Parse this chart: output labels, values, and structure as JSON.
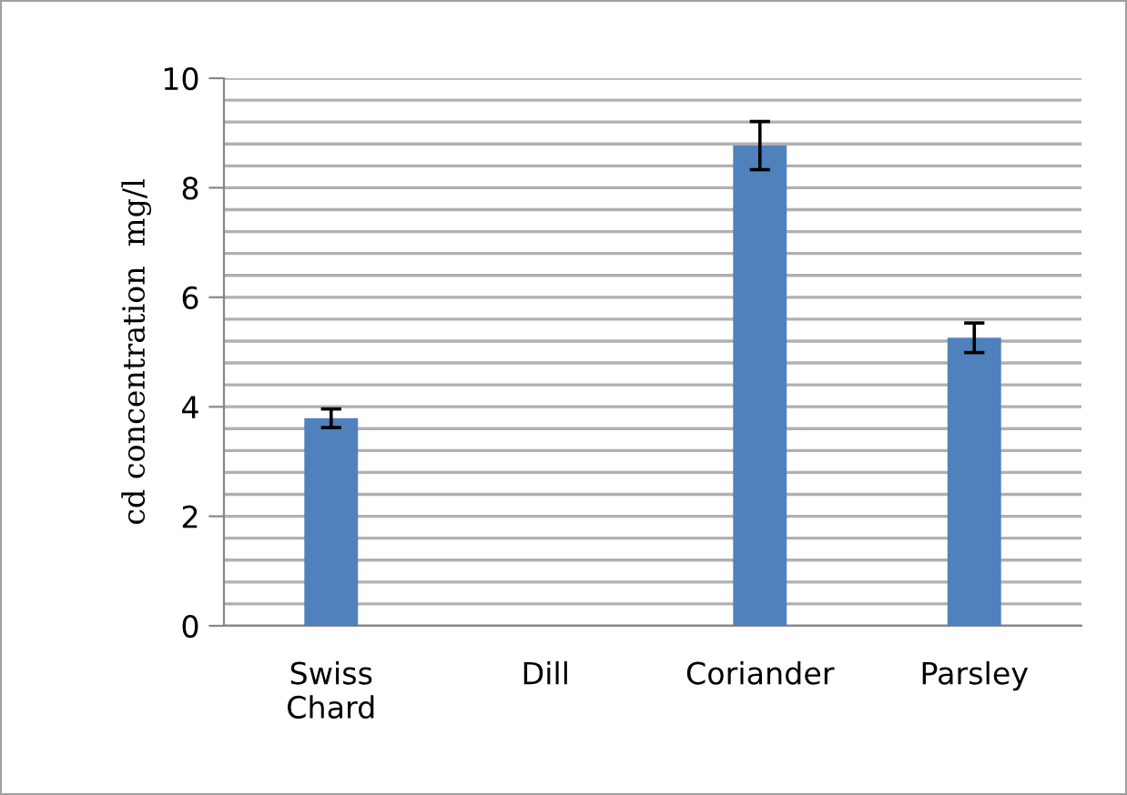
{
  "chart_data": {
    "type": "bar",
    "ylabel": "cd concentration  mg/l",
    "categories": [
      "Swiss\nChard",
      "Dill",
      "Coriander",
      "Parsley"
    ],
    "values": [
      3.79,
      null,
      8.77,
      5.26
    ],
    "errors": [
      0.17,
      null,
      0.44,
      0.27
    ],
    "color": "#4f81bd",
    "ylim": [
      0,
      10
    ],
    "yticks": [
      0,
      {
        "value": 0.4,
        "label": null
      },
      {
        "value": 0.8,
        "label": null
      },
      {
        "value": 1.2,
        "label": null
      },
      {
        "value": 1.6,
        "label": null
      },
      2,
      {
        "value": 2.4,
        "label": null
      },
      {
        "value": 2.8,
        "label": null
      },
      {
        "value": 3.2,
        "label": null
      },
      {
        "value": 3.6,
        "label": null
      },
      4,
      {
        "value": 4.4,
        "label": null
      },
      {
        "value": 4.8,
        "label": null
      },
      {
        "value": 5.2,
        "label": null
      },
      {
        "value": 5.6,
        "label": null
      },
      6,
      {
        "value": 6.4,
        "label": null
      },
      {
        "value": 6.8,
        "label": null
      },
      {
        "value": 7.2,
        "label": null
      },
      {
        "value": 7.6,
        "label": null
      },
      8,
      {
        "value": 8.4,
        "label": null
      },
      {
        "value": 8.8,
        "label": null
      },
      {
        "value": 9.2,
        "label": null
      },
      {
        "value": 9.6,
        "label": null
      },
      10
    ],
    "grid": "y"
  }
}
